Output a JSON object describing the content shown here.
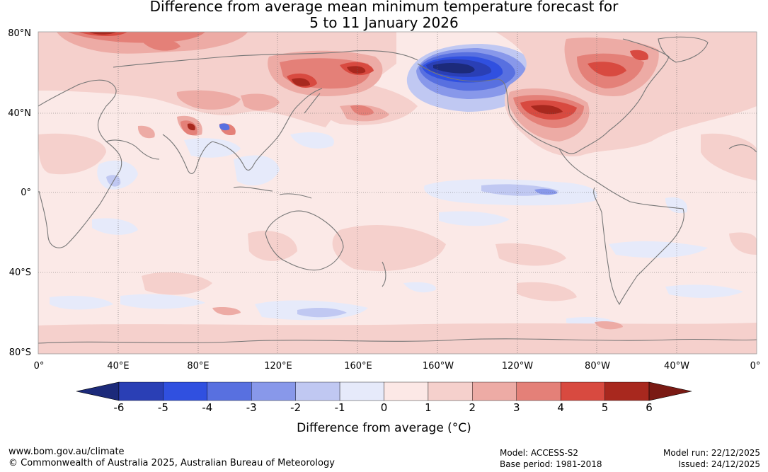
{
  "title": {
    "line1": "Difference from average mean minimum temperature forecast for",
    "line2": "5 to 11 January 2026"
  },
  "map": {
    "lat_labels": [
      "80°N",
      "40°N",
      "0°",
      "40°S",
      "80°S"
    ],
    "lon_labels": [
      "0°",
      "40°E",
      "80°E",
      "120°E",
      "160°E",
      "160°W",
      "120°W",
      "80°W",
      "40°W",
      "0°"
    ]
  },
  "colorbar": {
    "ticks": [
      "-6",
      "-5",
      "-4",
      "-3",
      "-2",
      "-1",
      "0",
      "1",
      "2",
      "3",
      "4",
      "5",
      "6"
    ],
    "colors": [
      "#1c2a7a",
      "#2a3fb5",
      "#3050e0",
      "#5870e0",
      "#8898ea",
      "#c0c8f2",
      "#e6eafa",
      "#fce8e6",
      "#f5d0cc",
      "#edaba5",
      "#e48078",
      "#d84a40",
      "#a8281e",
      "#7a1a14"
    ],
    "label": "Difference from average (°C)"
  },
  "footer": {
    "website": "www.bom.gov.au/climate",
    "copyright": "© Commonwealth of Australia 2025, Australian Bureau of Meteorology",
    "model": "Model: ACCESS-S2",
    "base_period": "Base period: 1981-2018",
    "model_run": "Model run: 22/12/2025",
    "issued": "Issued: 24/12/2025"
  }
}
